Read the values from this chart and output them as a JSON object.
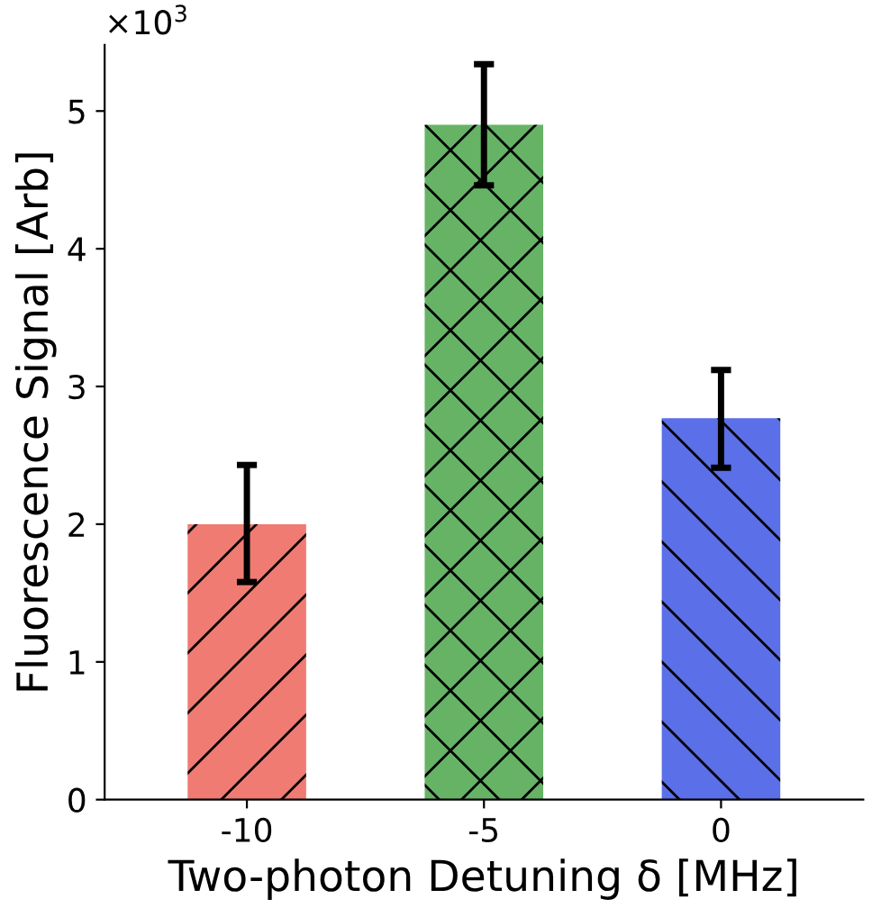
{
  "chart_data": {
    "type": "bar",
    "xlabel": "Two-photon Detuning δ [MHz]",
    "ylabel": "Fluorescence Signal [Arb]",
    "categories": [
      "-10",
      "-5",
      "0"
    ],
    "values": [
      2.0,
      4.9,
      2.77
    ],
    "colors": [
      "#f07b72",
      "#66b366",
      "#5b6fe8"
    ],
    "errors": [
      [
        1.58,
        2.43
      ],
      [
        4.46,
        5.34
      ],
      [
        2.41,
        3.12
      ]
    ],
    "ylim": [
      0,
      5.48
    ],
    "yticks": [
      0,
      1,
      2,
      3,
      4,
      5
    ],
    "annotations": [
      "×10$^{3}$"
    ],
    "grid": false,
    "legend": false
  }
}
